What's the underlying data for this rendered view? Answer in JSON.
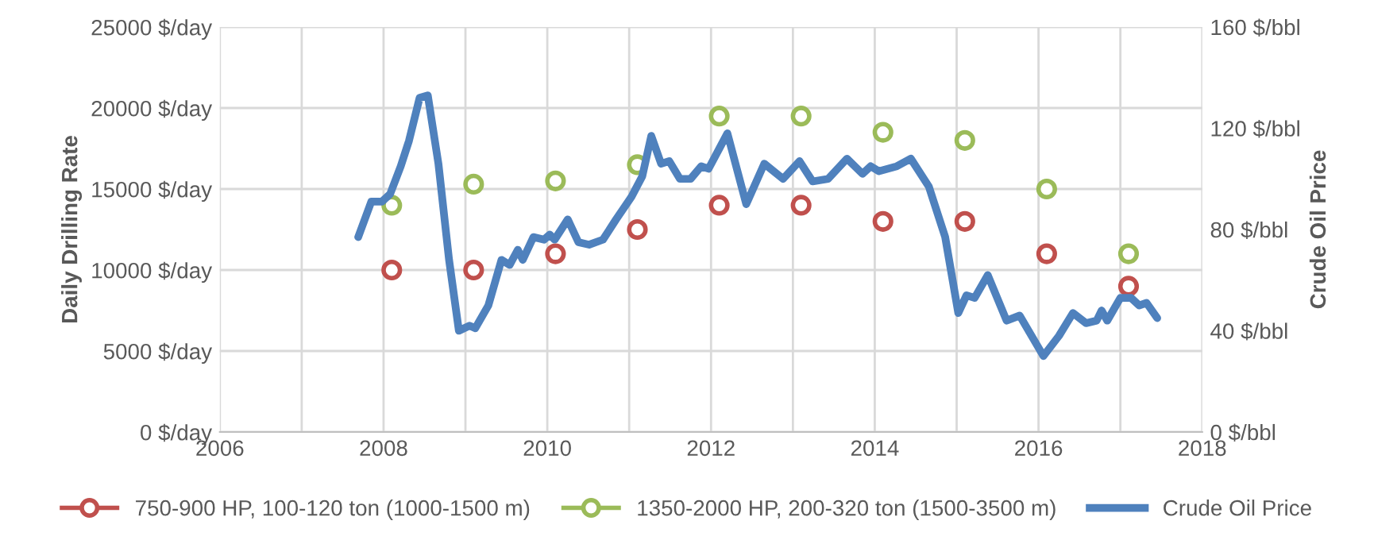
{
  "chart_data": {
    "type": "scatter",
    "xlabel": null,
    "ylabel": "Daily Drilling Rate",
    "y2label": "Crude Oil Price",
    "xlim": [
      2006,
      2018
    ],
    "xticks": [
      2006,
      {
        "value": 2007,
        "label": null
      },
      2008,
      {
        "value": 2009,
        "label": null
      },
      2010,
      {
        "value": 2011,
        "label": null
      },
      2012,
      {
        "value": 2013,
        "label": null
      },
      2014,
      {
        "value": 2015,
        "label": null
      },
      2016,
      {
        "value": 2017,
        "label": null
      },
      2018
    ],
    "ylim": [
      0,
      25000
    ],
    "yticks": [
      {
        "value": 0,
        "label": "0 $/day"
      },
      {
        "value": 5000,
        "label": "5000 $/day"
      },
      {
        "value": 10000,
        "label": "10000 $/day"
      },
      {
        "value": 15000,
        "label": "15000 $/day"
      },
      {
        "value": 20000,
        "label": "20000 $/day"
      },
      {
        "value": 25000,
        "label": "25000 $/day"
      }
    ],
    "y2lim": [
      0,
      160
    ],
    "y2ticks": [
      {
        "value": 0,
        "label": "0 $/bbl"
      },
      {
        "value": 40,
        "label": "40 $/bbl"
      },
      {
        "value": 80,
        "label": "80 $/bbl"
      },
      {
        "value": 120,
        "label": "120 $/bbl"
      },
      {
        "value": 160,
        "label": "160 $/bbl"
      }
    ],
    "grid": true,
    "legend": "bottom",
    "marker": "circle",
    "series": [
      {
        "name": "750-900 HP, 100-120 ton (1000-1500 m)",
        "color": "#c0504d",
        "x": [
          2008.1,
          2009.1,
          2010.1,
          2011.1,
          2012.1,
          2013.1,
          2014.1,
          2015.1,
          2016.1,
          2017.1
        ],
        "values": [
          10000,
          10000,
          11000,
          12500,
          14000,
          14000,
          13000,
          13000,
          11000,
          9000
        ]
      },
      {
        "name": "1350-2000 HP, 200-320 ton (1500-3500 m)",
        "color": "#9bbb59",
        "x": [
          2008.1,
          2009.1,
          2010.1,
          2011.1,
          2012.1,
          2013.1,
          2014.1,
          2015.1,
          2016.1,
          2017.1
        ],
        "values": [
          14000,
          15300,
          15500,
          16500,
          19500,
          19500,
          18500,
          18000,
          15000,
          11000
        ]
      },
      {
        "name": "Crude Oil Price",
        "type": "line",
        "axis": "y2",
        "color": "#4f81bd",
        "marker": "none",
        "x": [
          2007.69,
          2007.85,
          2007.98,
          2008.08,
          2008.21,
          2008.31,
          2008.44,
          2008.54,
          2008.67,
          2008.8,
          2008.92,
          2009.05,
          2009.12,
          2009.28,
          2009.44,
          2009.54,
          2009.64,
          2009.7,
          2009.83,
          2009.96,
          2010.03,
          2010.09,
          2010.25,
          2010.38,
          2010.51,
          2010.68,
          2010.84,
          2011.03,
          2011.16,
          2011.27,
          2011.39,
          2011.49,
          2011.62,
          2011.75,
          2011.88,
          2011.97,
          2012.2,
          2012.43,
          2012.65,
          2012.88,
          2013.08,
          2013.24,
          2013.43,
          2013.66,
          2013.85,
          2013.95,
          2014.05,
          2014.27,
          2014.44,
          2014.66,
          2014.86,
          2015.02,
          2015.12,
          2015.22,
          2015.38,
          2015.61,
          2015.77,
          2016.06,
          2016.25,
          2016.42,
          2016.58,
          2016.71,
          2016.77,
          2016.84,
          2017.0,
          2017.13,
          2017.23,
          2017.32,
          2017.45
        ],
        "values": [
          77,
          91,
          91,
          94,
          105,
          115,
          132,
          133,
          106,
          68,
          40,
          42,
          41,
          50,
          68,
          66,
          72,
          68,
          77,
          76,
          78,
          76,
          84,
          75,
          74,
          76,
          84,
          93,
          101,
          117,
          106,
          107,
          100,
          100,
          105,
          104,
          118,
          90,
          106,
          100,
          107,
          99,
          100,
          108,
          102,
          105,
          103,
          105,
          108,
          97,
          77,
          47,
          54,
          53,
          62,
          44,
          46,
          30,
          38,
          47,
          43,
          44,
          48,
          44,
          53,
          53,
          50,
          51,
          45
        ]
      }
    ]
  }
}
